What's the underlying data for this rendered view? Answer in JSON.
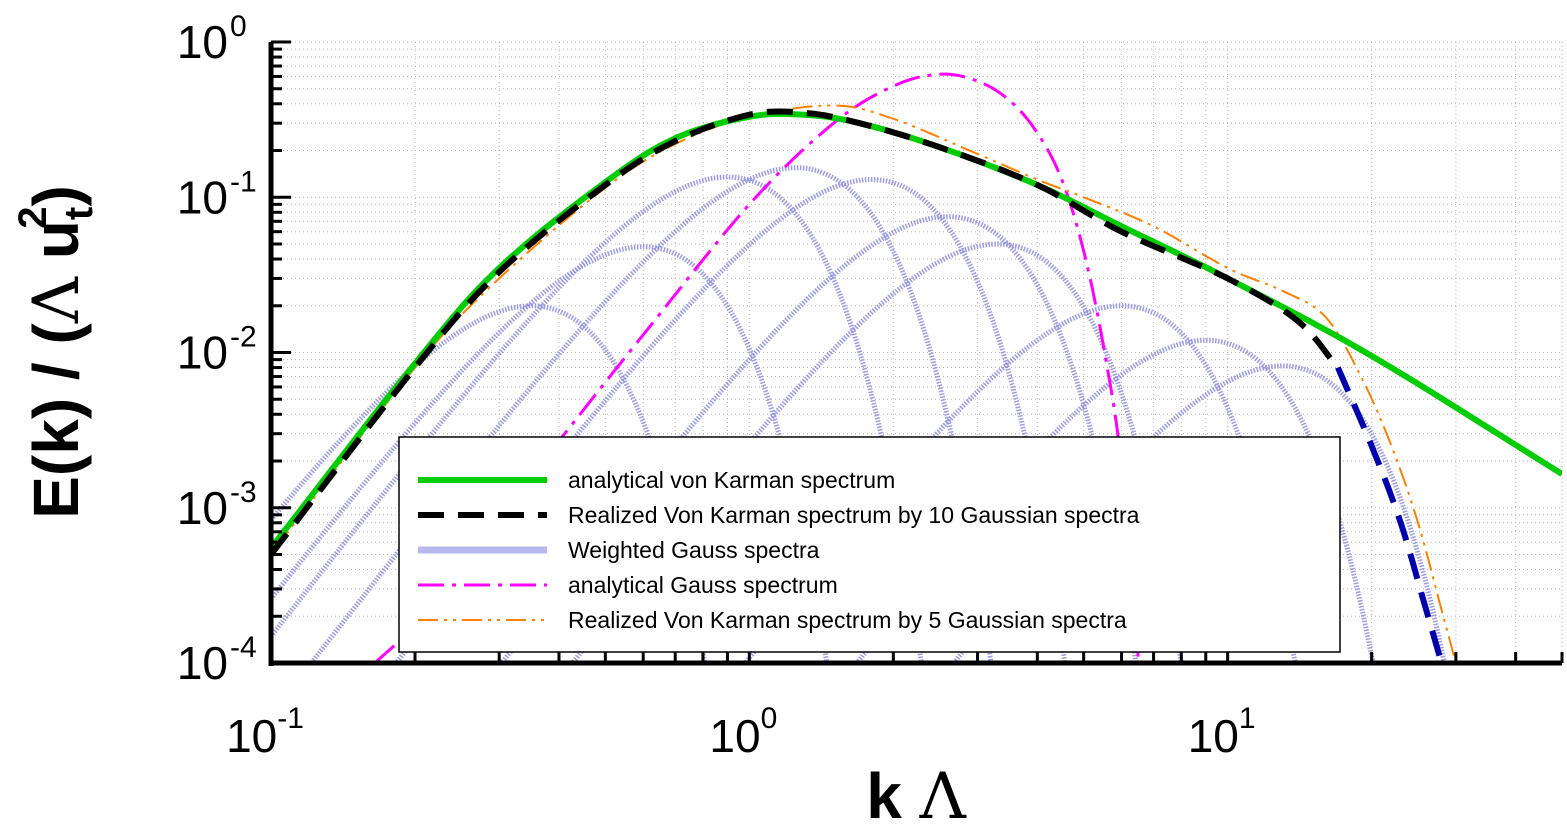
{
  "chart_data": {
    "type": "line",
    "xscale": "log",
    "yscale": "log",
    "xlim": [
      0.1,
      50
    ],
    "ylim": [
      0.0001,
      1
    ],
    "grid": true,
    "xlabel": {
      "main": "k",
      "symbol": "Λ"
    },
    "ylabel": {
      "prefix": "E(k) / (",
      "symbol": "Λ",
      "u": "u",
      "sub": "t",
      "sup": "2",
      "suffix": ")"
    },
    "x_ticks": [
      {
        "value": 0.1,
        "base": "10",
        "exp": "-1"
      },
      {
        "value": 1,
        "base": "10",
        "exp": "0"
      },
      {
        "value": 10,
        "base": "10",
        "exp": "1"
      }
    ],
    "y_ticks": [
      {
        "value": 1,
        "base": "10",
        "exp": "0"
      },
      {
        "value": 0.1,
        "base": "10",
        "exp": "-1"
      },
      {
        "value": 0.01,
        "base": "10",
        "exp": "-2"
      },
      {
        "value": 0.001,
        "base": "10",
        "exp": "-3"
      },
      {
        "value": 0.0001,
        "base": "10",
        "exp": "-4"
      }
    ],
    "legend": {
      "position": "bottom-center",
      "entries": [
        {
          "label": "analytical von Karman spectrum",
          "series": "vk"
        },
        {
          "label": "Realized Von Karman spectrum by 10 Gaussian spectra",
          "series": "vk10"
        },
        {
          "label": "Weighted Gauss spectra",
          "series": "wg"
        },
        {
          "label": "analytical Gauss spectrum",
          "series": "ag"
        },
        {
          "label": "Realized Von Karman spectrum by 5 Gaussian spectra",
          "series": "vk5"
        }
      ]
    },
    "series": [
      {
        "id": "vk",
        "name": "analytical von Karman spectrum",
        "color": "#00cc00",
        "style": "solid",
        "x": [
          0.1,
          0.2,
          0.3,
          0.5,
          0.7,
          1.0,
          1.3,
          1.7,
          2.5,
          4.0,
          6.0,
          10.0,
          20.0,
          50.0
        ],
        "y": [
          0.00055,
          0.0085,
          0.035,
          0.125,
          0.24,
          0.33,
          0.34,
          0.3,
          0.21,
          0.12,
          0.065,
          0.03,
          0.0095,
          0.00165
        ]
      },
      {
        "id": "vk10",
        "name": "Realized Von Karman spectrum by 10 Gaussian spectra",
        "color": "#000000",
        "style": "dashed",
        "color2": "#0000aa",
        "x": [
          0.1,
          0.2,
          0.3,
          0.5,
          0.7,
          1.0,
          1.3,
          1.7,
          2.5,
          4.0,
          6.0,
          10.0,
          14.0,
          17.0,
          20.0,
          23.0,
          26.0,
          28.0
        ],
        "y": [
          0.0005,
          0.008,
          0.033,
          0.12,
          0.23,
          0.34,
          0.35,
          0.3,
          0.21,
          0.12,
          0.06,
          0.03,
          0.016,
          0.008,
          0.0025,
          0.0008,
          0.00022,
          0.0001
        ]
      },
      {
        "id": "ag",
        "name": "analytical Gauss spectrum",
        "color": "#ff00ff",
        "style": "dashdot",
        "x": [
          0.165,
          0.2,
          0.3,
          0.4,
          0.6,
          1.0,
          1.5,
          2.0,
          2.5,
          3.0,
          3.5,
          4.0,
          4.5,
          5.0,
          5.5,
          6.0,
          6.5
        ],
        "y": [
          0.0001,
          0.00018,
          0.0009,
          0.0027,
          0.013,
          0.09,
          0.3,
          0.52,
          0.62,
          0.56,
          0.42,
          0.26,
          0.13,
          0.045,
          0.011,
          0.0019,
          0.00011
        ]
      },
      {
        "id": "vk5",
        "name": "Realized Von Karman spectrum by 5 Gaussian spectra",
        "color": "#ff8000",
        "style": "dashdotdot",
        "x": [
          0.1,
          0.2,
          0.3,
          0.5,
          0.7,
          1.0,
          1.5,
          2.0,
          3.0,
          4.0,
          5.0,
          7.0,
          10.0,
          13.0,
          16.0,
          19.0,
          22.0,
          25.0,
          28.0,
          30.0
        ],
        "y": [
          0.0005,
          0.008,
          0.03,
          0.115,
          0.22,
          0.33,
          0.39,
          0.32,
          0.19,
          0.13,
          0.1,
          0.065,
          0.035,
          0.025,
          0.017,
          0.007,
          0.0025,
          0.0008,
          0.00022,
          0.0001
        ]
      },
      {
        "id": "wg",
        "name": "Weighted Gauss spectra",
        "color": "#8b8bdb",
        "style": "dotted",
        "components": [
          {
            "peak_k": 0.35,
            "peak_E": 0.02
          },
          {
            "peak_k": 0.6,
            "peak_E": 0.048
          },
          {
            "peak_k": 0.9,
            "peak_E": 0.135
          },
          {
            "peak_k": 1.25,
            "peak_E": 0.155
          },
          {
            "peak_k": 1.8,
            "peak_E": 0.13
          },
          {
            "peak_k": 2.6,
            "peak_E": 0.075
          },
          {
            "peak_k": 3.3,
            "peak_E": 0.05
          },
          {
            "peak_k": 6.0,
            "peak_E": 0.02
          },
          {
            "peak_k": 9.0,
            "peak_E": 0.012
          },
          {
            "peak_k": 13.0,
            "peak_E": 0.0082
          }
        ]
      }
    ]
  }
}
